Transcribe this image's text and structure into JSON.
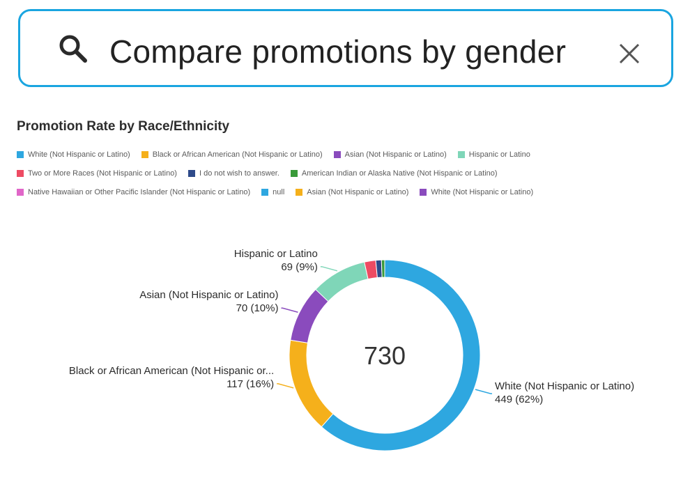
{
  "search": {
    "query": "Compare promotions by gender",
    "icon": "search-icon",
    "clear_icon": "close-icon",
    "border_color": "#1aa5e0"
  },
  "chart_data": {
    "type": "pie",
    "style": "donut",
    "title": "Promotion Rate by Race/Ethnicity",
    "total_label": "730",
    "legend_placement": "top",
    "legend": [
      [
        {
          "label": "White (Not Hispanic or Latino)",
          "color": "#2ea7e0"
        },
        {
          "label": "Black or African American (Not Hispanic or Latino)",
          "color": "#f5b01b"
        },
        {
          "label": "Asian (Not Hispanic or Latino)",
          "color": "#8a4bbd"
        },
        {
          "label": "Hispanic or Latino",
          "color": "#7fd6b8"
        }
      ],
      [
        {
          "label": "Two or More Races (Not Hispanic or Latino)",
          "color": "#ee4b63"
        },
        {
          "label": "I do not wish to answer.",
          "color": "#2e4a8a"
        },
        {
          "label": "American Indian or Alaska Native (Not Hispanic or Latino)",
          "color": "#3a9a3a"
        }
      ],
      [
        {
          "label": "Native Hawaiian or Other Pacific Islander (Not Hispanic or Latino)",
          "color": "#e066c8"
        },
        {
          "label": "null",
          "color": "#2ea7e0"
        },
        {
          "label": "Asian (Not Hispanic or Latino)",
          "color": "#f5b01b"
        },
        {
          "label": "White (Not Hispanic or Latino)",
          "color": "#8a4bbd"
        }
      ]
    ],
    "slices": [
      {
        "name": "White (Not Hispanic or Latino)",
        "value": 449,
        "color": "#2ea7e0",
        "label": [
          "White (Not Hispanic or Latino)",
          "449 (62%)"
        ]
      },
      {
        "name": "Black or African American (Not Hispanic or Latino)",
        "value": 117,
        "color": "#f5b01b",
        "label": [
          "Black or African American (Not Hispanic or...",
          "117 (16%)"
        ]
      },
      {
        "name": "Asian (Not Hispanic or Latino)",
        "value": 70,
        "color": "#8a4bbd",
        "label": [
          "Asian (Not Hispanic or Latino)",
          "70 (10%)"
        ]
      },
      {
        "name": "Hispanic or Latino",
        "value": 69,
        "color": "#7fd6b8",
        "label": [
          "Hispanic or Latino",
          "69 (9%)"
        ]
      },
      {
        "name": "Two or More Races (Not Hispanic or Latino)",
        "value": 14,
        "color": "#ee4b63"
      },
      {
        "name": "I do not wish to answer.",
        "value": 7,
        "color": "#2e4a8a"
      },
      {
        "name": "American Indian or Alaska Native (Not Hispanic or Latino)",
        "value": 4,
        "color": "#3a9a3a"
      }
    ]
  }
}
